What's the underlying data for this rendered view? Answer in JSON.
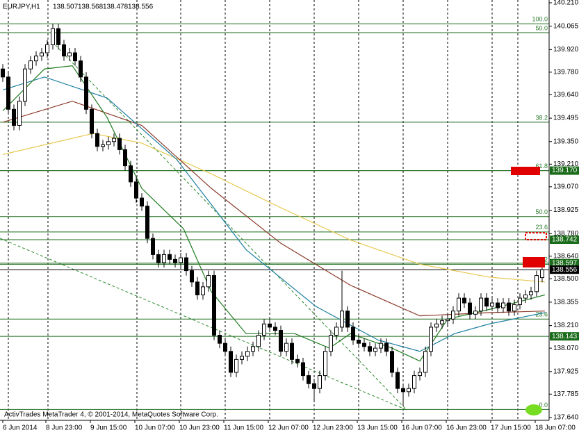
{
  "chart_data": {
    "type": "candlestick",
    "header": {
      "symbol": "EURJPY,H1"
    },
    "footer": "ActivTrades MetaTrader 4, © 2001-2014, MetaQuotes Software Corp.",
    "ylim": [
      137.64,
      140.21
    ],
    "yticks": [
      {
        "value": 140.21,
        "label": "140.210"
      },
      140.065,
      {
        "value": 139.92,
        "label": "139.920"
      },
      {
        "value": 139.78,
        "label": "139.780"
      },
      {
        "value": 139.64,
        "label": "139.640"
      },
      139.495,
      {
        "value": 139.35,
        "label": "139.350"
      },
      {
        "value": 139.21,
        "label": "139.210"
      },
      {
        "value": 139.07,
        "label": "139.070"
      },
      138.925,
      {
        "value": 138.78,
        "label": "138.780"
      },
      {
        "value": 138.64,
        "label": "138.640"
      },
      {
        "value": 138.5,
        "label": "138.500"
      },
      138.355,
      {
        "value": 138.21,
        "label": "138.210"
      },
      {
        "value": 138.07,
        "label": "138.070"
      },
      137.925,
      137.785,
      {
        "value": 137.64,
        "label": "137.640"
      }
    ],
    "xticks": [
      {
        "value": 0,
        "label": "6 Jun 2014"
      },
      {
        "value": 7.75,
        "label": "8 Jun 23:00"
      },
      {
        "value": 15.75,
        "label": "9 Jun 15:00"
      },
      {
        "value": 23.75,
        "label": "10 Jun 07:00"
      },
      {
        "value": 31.75,
        "label": "10 Jun 23:00"
      },
      {
        "value": 39.75,
        "label": "11 Jun 15:00"
      },
      {
        "value": 47.75,
        "label": "12 Jun 07:00"
      },
      {
        "value": 55.75,
        "label": "12 Jun 23:00"
      },
      {
        "value": 63.75,
        "label": "13 Jun 15:00"
      },
      {
        "value": 71.75,
        "label": "16 Jun 07:00"
      },
      {
        "value": 79.75,
        "label": "16 Jun 23:00"
      },
      {
        "value": 87.75,
        "label": "17 Jun 15:00"
      },
      {
        "value": 95.75,
        "label": "18 Jun 07:00"
      }
    ],
    "candles": [
      [
        139.8,
        139.83,
        139.72,
        139.75
      ],
      [
        139.75,
        139.78,
        139.52,
        139.55
      ],
      [
        139.55,
        139.58,
        139.42,
        139.45
      ],
      [
        139.45,
        139.63,
        139.42,
        139.6
      ],
      [
        139.6,
        139.83,
        139.57,
        139.8
      ],
      [
        139.8,
        139.88,
        139.77,
        139.85
      ],
      [
        139.85,
        139.91,
        139.82,
        139.88
      ],
      [
        139.88,
        139.93,
        139.85,
        139.9
      ],
      [
        139.9,
        139.98,
        139.87,
        139.95
      ],
      [
        139.95,
        140.08,
        139.92,
        140.05
      ],
      [
        140.05,
        140.08,
        139.92,
        139.95
      ],
      [
        139.95,
        139.98,
        139.85,
        139.88
      ],
      [
        139.88,
        139.93,
        139.85,
        139.9
      ],
      [
        139.9,
        139.93,
        139.82,
        139.85
      ],
      [
        139.85,
        139.88,
        139.72,
        139.75
      ],
      [
        139.75,
        139.78,
        139.52,
        139.55
      ],
      [
        139.55,
        139.58,
        139.37,
        139.4
      ],
      [
        139.4,
        139.43,
        139.29,
        139.32
      ],
      [
        139.32,
        139.36,
        139.29,
        139.33
      ],
      [
        139.33,
        139.38,
        139.3,
        139.35
      ],
      [
        139.35,
        139.4,
        139.32,
        139.37
      ],
      [
        139.37,
        139.4,
        139.27,
        139.3
      ],
      [
        139.3,
        139.33,
        139.17,
        139.2
      ],
      [
        139.2,
        139.23,
        139.07,
        139.1
      ],
      [
        139.1,
        139.13,
        138.97,
        139.0
      ],
      [
        139.0,
        139.03,
        138.92,
        138.95
      ],
      [
        138.95,
        138.98,
        138.72,
        138.75
      ],
      [
        138.75,
        138.78,
        138.62,
        138.65
      ],
      [
        138.65,
        138.68,
        138.57,
        138.6
      ],
      [
        138.6,
        138.68,
        138.57,
        138.65
      ],
      [
        138.65,
        138.68,
        138.59,
        138.62
      ],
      [
        138.62,
        138.65,
        138.57,
        138.6
      ],
      [
        138.6,
        138.66,
        138.57,
        138.63
      ],
      [
        138.63,
        138.66,
        138.52,
        138.55
      ],
      [
        138.55,
        138.58,
        138.45,
        138.48
      ],
      [
        138.48,
        138.51,
        138.37,
        138.4
      ],
      [
        138.4,
        138.48,
        138.37,
        138.45
      ],
      [
        138.45,
        138.55,
        138.42,
        138.52
      ],
      [
        138.52,
        138.55,
        138.12,
        138.15
      ],
      [
        138.15,
        138.18,
        138.07,
        138.1
      ],
      [
        138.1,
        138.13,
        138.02,
        138.05
      ],
      [
        138.05,
        138.08,
        137.89,
        137.92
      ],
      [
        137.92,
        138.03,
        137.89,
        138.0
      ],
      [
        138.0,
        138.05,
        137.97,
        138.02
      ],
      [
        138.02,
        138.08,
        137.99,
        138.05
      ],
      [
        138.05,
        138.11,
        138.02,
        138.08
      ],
      [
        138.08,
        138.18,
        138.05,
        138.15
      ],
      [
        138.15,
        138.25,
        138.12,
        138.22
      ],
      [
        138.22,
        138.25,
        138.17,
        138.2
      ],
      [
        138.2,
        138.23,
        138.15,
        138.18
      ],
      [
        138.18,
        138.21,
        138.02,
        138.05
      ],
      [
        138.05,
        138.13,
        138.02,
        138.1
      ],
      [
        138.1,
        138.13,
        137.97,
        138.0
      ],
      [
        138.0,
        138.03,
        137.95,
        137.98
      ],
      [
        137.98,
        138.01,
        137.87,
        137.9
      ],
      [
        137.9,
        137.93,
        137.82,
        137.85
      ],
      [
        137.85,
        137.88,
        137.74,
        137.82
      ],
      [
        137.82,
        137.93,
        137.79,
        137.9
      ],
      [
        137.9,
        138.08,
        137.87,
        138.05
      ],
      [
        138.05,
        138.18,
        138.02,
        138.15
      ],
      [
        138.15,
        138.23,
        138.12,
        138.2
      ],
      [
        138.2,
        138.55,
        138.17,
        138.3
      ],
      [
        138.3,
        138.33,
        138.17,
        138.2
      ],
      [
        138.2,
        138.23,
        138.09,
        138.12
      ],
      [
        138.12,
        138.15,
        138.07,
        138.1
      ],
      [
        138.1,
        138.13,
        138.05,
        138.08
      ],
      [
        138.08,
        138.11,
        138.02,
        138.05
      ],
      [
        138.05,
        138.1,
        138.02,
        138.07
      ],
      [
        138.07,
        138.13,
        138.04,
        138.1
      ],
      [
        138.1,
        138.13,
        138.02,
        138.05
      ],
      [
        138.05,
        138.08,
        137.89,
        137.92
      ],
      [
        137.92,
        137.95,
        137.79,
        137.82
      ],
      [
        137.82,
        137.85,
        137.71,
        137.8
      ],
      [
        137.8,
        137.85,
        137.77,
        137.82
      ],
      [
        137.82,
        137.93,
        137.79,
        137.9
      ],
      [
        137.9,
        137.95,
        137.87,
        137.92
      ],
      [
        137.92,
        138.08,
        137.89,
        138.05
      ],
      [
        138.05,
        138.23,
        138.02,
        138.2
      ],
      [
        138.2,
        138.25,
        138.17,
        138.22
      ],
      [
        138.22,
        138.27,
        138.19,
        138.24
      ],
      [
        138.24,
        138.28,
        138.21,
        138.25
      ],
      [
        138.25,
        138.33,
        138.22,
        138.3
      ],
      [
        138.3,
        138.41,
        138.27,
        138.38
      ],
      [
        138.38,
        138.41,
        138.32,
        138.35
      ],
      [
        138.35,
        138.38,
        138.25,
        138.28
      ],
      [
        138.28,
        138.33,
        138.25,
        138.3
      ],
      [
        138.3,
        138.41,
        138.27,
        138.38
      ],
      [
        138.38,
        138.41,
        138.3,
        138.33
      ],
      [
        138.33,
        138.38,
        138.3,
        138.35
      ],
      [
        138.35,
        138.38,
        138.29,
        138.32
      ],
      [
        138.32,
        138.38,
        138.29,
        138.35
      ],
      [
        138.35,
        138.38,
        138.27,
        138.3
      ],
      [
        138.3,
        138.37,
        138.27,
        138.34
      ],
      [
        138.34,
        138.41,
        138.31,
        138.38
      ],
      [
        138.38,
        138.43,
        138.35,
        138.4
      ],
      [
        138.4,
        138.45,
        138.37,
        138.42
      ],
      [
        138.42,
        138.55,
        138.39,
        138.52
      ],
      [
        138.507,
        138.568,
        138.478,
        138.556
      ]
    ],
    "series": [
      {
        "color": "#e8c850",
        "x": [
          0,
          16.25,
          25,
          37.5,
          50,
          62.5,
          75,
          87.5,
          97.5
        ],
        "values": [
          139.27,
          139.4,
          139.34,
          139.15,
          138.94,
          138.74,
          138.59,
          138.51,
          138.48
        ]
      },
      {
        "color": "#8b3a2a",
        "x": [
          0,
          12.5,
          25,
          37.5,
          50,
          62.5,
          75,
          87.5,
          97.5
        ],
        "values": [
          139.47,
          139.6,
          139.45,
          139.06,
          138.72,
          138.46,
          138.27,
          138.29,
          138.3
        ]
      },
      {
        "color": "#1e7fa0",
        "x": [
          0,
          7.5,
          18.75,
          31.25,
          43.75,
          56.25,
          67.5,
          75,
          81.25,
          87.5,
          97.5
        ],
        "values": [
          139.67,
          139.75,
          139.62,
          139.24,
          138.68,
          138.33,
          138.12,
          138.05,
          138.16,
          138.22,
          138.29
        ]
      },
      {
        "color": "#1e7a1e",
        "x": [
          0,
          7.5,
          12.5,
          18.75,
          25,
          32.5,
          37.5,
          43.75,
          52.5,
          58.75,
          62.5,
          70,
          75,
          80,
          87.5,
          97.5
        ],
        "values": [
          139.54,
          139.8,
          139.82,
          139.5,
          139.06,
          138.81,
          138.42,
          138.16,
          138.16,
          138.07,
          138.16,
          138.07,
          137.99,
          138.25,
          138.31,
          138.4
        ]
      }
    ],
    "fib_levels": [
      {
        "value": 140.08,
        "label": "100.0"
      },
      {
        "value": 140.025,
        "label": "50.0"
      },
      {
        "value": 139.47,
        "label": "38.2"
      },
      {
        "value": 139.17,
        "label": "61.8"
      },
      {
        "value": 138.885,
        "label": "50.0"
      },
      {
        "value": 138.79,
        "label": "23.6"
      },
      {
        "value": 138.59,
        "label": "38.2"
      },
      {
        "value": 138.25,
        "label": "23.6"
      },
      {
        "value": 137.69,
        "label": "0.0"
      }
    ],
    "price_lines": {
      "values": [
        139.17,
        138.742,
        138.597,
        138.556,
        138.143
      ],
      "value_labels": [
        "139.170",
        "138.742",
        "138.597",
        "138.556",
        "138.143"
      ],
      "colors": [
        "#1a6b1a",
        "#1a6b1a",
        "#1a6b1a",
        "#000000",
        "#1a6b1a"
      ]
    }
  }
}
